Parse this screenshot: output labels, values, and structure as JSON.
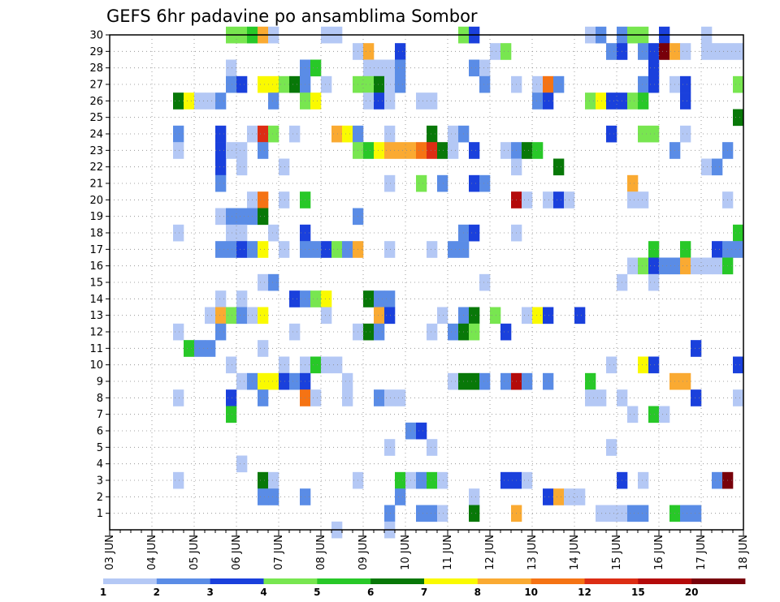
{
  "chart_data": {
    "type": "heatmap",
    "title": "GEFS 6hr padavine po ansamblima Sombor",
    "xlabel": "",
    "ylabel": "",
    "x_tick_labels": [
      "03 JUN",
      "04 JUN",
      "05 JUN",
      "06 JUN",
      "07 JUN",
      "08 JUN",
      "09 JUN",
      "10 JUN",
      "11 JUN",
      "12 JUN",
      "13 JUN",
      "14 JUN",
      "15 JUN",
      "16 JUN",
      "17 JUN",
      "18 JUN"
    ],
    "y_tick_labels": [
      "1",
      "2",
      "3",
      "4",
      "5",
      "6",
      "7",
      "8",
      "9",
      "10",
      "11",
      "12",
      "13",
      "14",
      "15",
      "16",
      "17",
      "18",
      "19",
      "20",
      "21",
      "22",
      "23",
      "24",
      "25",
      "26",
      "27",
      "28",
      "29",
      "30"
    ],
    "y_range": [
      0,
      30
    ],
    "time_steps": 60,
    "steps_per_day": 4,
    "grid": true,
    "legend_position": "bottom",
    "legend": {
      "labels": [
        "1",
        "2",
        "3",
        "4",
        "5",
        "6",
        "7",
        "8",
        "10",
        "12",
        "15",
        "20"
      ],
      "colors": [
        "#b4c8f5",
        "#5a8ce6",
        "#1a40dc",
        "#78e650",
        "#28c828",
        "#087808",
        "#fafa00",
        "#faaa32",
        "#f57314",
        "#dc2d14",
        "#b40a0a",
        "#78000a"
      ]
    },
    "colors": [
      "#b4c8f5",
      "#5a8ce6",
      "#1a40dc",
      "#78e650",
      "#28c828",
      "#087808",
      "#fafa00",
      "#faaa32",
      "#f57314",
      "#dc2d14",
      "#b40a0a",
      "#78000a"
    ],
    "cells": [
      [
        30,
        11,
        3
      ],
      [
        30,
        12,
        3
      ],
      [
        30,
        13,
        4
      ],
      [
        30,
        14,
        7
      ],
      [
        30,
        15,
        0
      ],
      [
        30,
        20,
        0
      ],
      [
        30,
        21,
        0
      ],
      [
        30,
        33,
        3
      ],
      [
        30,
        34,
        2
      ],
      [
        30,
        45,
        0
      ],
      [
        30,
        46,
        1
      ],
      [
        30,
        48,
        1
      ],
      [
        30,
        49,
        3
      ],
      [
        30,
        50,
        3
      ],
      [
        30,
        52,
        2
      ],
      [
        30,
        56,
        0
      ],
      [
        29,
        23,
        0
      ],
      [
        29,
        24,
        7
      ],
      [
        29,
        27,
        2
      ],
      [
        29,
        36,
        0
      ],
      [
        29,
        37,
        3
      ],
      [
        29,
        47,
        1
      ],
      [
        29,
        48,
        2
      ],
      [
        29,
        50,
        1
      ],
      [
        29,
        51,
        2
      ],
      [
        29,
        52,
        11
      ],
      [
        29,
        53,
        7
      ],
      [
        29,
        54,
        0
      ],
      [
        29,
        56,
        0
      ],
      [
        29,
        57,
        0
      ],
      [
        29,
        58,
        0
      ],
      [
        29,
        59,
        0
      ],
      [
        28,
        11,
        0
      ],
      [
        28,
        18,
        1
      ],
      [
        28,
        19,
        4
      ],
      [
        28,
        24,
        0
      ],
      [
        28,
        25,
        0
      ],
      [
        28,
        26,
        0
      ],
      [
        28,
        27,
        1
      ],
      [
        28,
        34,
        1
      ],
      [
        28,
        35,
        0
      ],
      [
        28,
        51,
        2
      ],
      [
        27,
        11,
        1
      ],
      [
        27,
        12,
        2
      ],
      [
        27,
        14,
        6
      ],
      [
        27,
        15,
        6
      ],
      [
        27,
        16,
        3
      ],
      [
        27,
        17,
        5
      ],
      [
        27,
        18,
        1
      ],
      [
        27,
        20,
        0
      ],
      [
        27,
        23,
        3
      ],
      [
        27,
        24,
        3
      ],
      [
        27,
        25,
        5
      ],
      [
        27,
        26,
        0
      ],
      [
        27,
        27,
        1
      ],
      [
        27,
        35,
        1
      ],
      [
        27,
        38,
        0
      ],
      [
        27,
        40,
        0
      ],
      [
        27,
        41,
        8
      ],
      [
        27,
        42,
        1
      ],
      [
        27,
        50,
        1
      ],
      [
        27,
        51,
        2
      ],
      [
        27,
        53,
        0
      ],
      [
        27,
        54,
        2
      ],
      [
        27,
        59,
        3
      ],
      [
        26,
        6,
        5
      ],
      [
        26,
        7,
        6
      ],
      [
        26,
        8,
        0
      ],
      [
        26,
        9,
        0
      ],
      [
        26,
        10,
        1
      ],
      [
        26,
        15,
        1
      ],
      [
        26,
        18,
        3
      ],
      [
        26,
        19,
        6
      ],
      [
        26,
        24,
        0
      ],
      [
        26,
        25,
        2
      ],
      [
        26,
        26,
        0
      ],
      [
        26,
        29,
        0
      ],
      [
        26,
        30,
        0
      ],
      [
        26,
        40,
        1
      ],
      [
        26,
        41,
        2
      ],
      [
        26,
        45,
        3
      ],
      [
        26,
        46,
        6
      ],
      [
        26,
        47,
        2
      ],
      [
        26,
        48,
        2
      ],
      [
        26,
        49,
        3
      ],
      [
        26,
        50,
        4
      ],
      [
        26,
        54,
        2
      ],
      [
        25,
        59,
        5
      ],
      [
        24,
        6,
        1
      ],
      [
        24,
        10,
        2
      ],
      [
        24,
        13,
        0
      ],
      [
        24,
        14,
        9
      ],
      [
        24,
        15,
        3
      ],
      [
        24,
        17,
        0
      ],
      [
        24,
        21,
        7
      ],
      [
        24,
        22,
        6
      ],
      [
        24,
        23,
        1
      ],
      [
        24,
        26,
        0
      ],
      [
        24,
        30,
        5
      ],
      [
        24,
        32,
        0
      ],
      [
        24,
        33,
        1
      ],
      [
        24,
        47,
        2
      ],
      [
        24,
        50,
        3
      ],
      [
        24,
        51,
        3
      ],
      [
        24,
        54,
        0
      ],
      [
        23,
        6,
        0
      ],
      [
        23,
        10,
        2
      ],
      [
        23,
        11,
        0
      ],
      [
        23,
        12,
        0
      ],
      [
        23,
        14,
        1
      ],
      [
        23,
        23,
        3
      ],
      [
        23,
        24,
        4
      ],
      [
        23,
        25,
        6
      ],
      [
        23,
        26,
        7
      ],
      [
        23,
        27,
        7
      ],
      [
        23,
        28,
        7
      ],
      [
        23,
        29,
        8
      ],
      [
        23,
        30,
        9
      ],
      [
        23,
        31,
        5
      ],
      [
        23,
        32,
        0
      ],
      [
        23,
        34,
        2
      ],
      [
        23,
        37,
        0
      ],
      [
        23,
        38,
        1
      ],
      [
        23,
        39,
        5
      ],
      [
        23,
        40,
        4
      ],
      [
        23,
        53,
        1
      ],
      [
        23,
        58,
        1
      ],
      [
        22,
        10,
        2
      ],
      [
        22,
        12,
        0
      ],
      [
        22,
        16,
        0
      ],
      [
        22,
        38,
        0
      ],
      [
        22,
        42,
        5
      ],
      [
        22,
        56,
        0
      ],
      [
        22,
        57,
        1
      ],
      [
        21,
        10,
        1
      ],
      [
        21,
        26,
        0
      ],
      [
        21,
        29,
        3
      ],
      [
        21,
        31,
        1
      ],
      [
        21,
        34,
        2
      ],
      [
        21,
        35,
        1
      ],
      [
        21,
        49,
        7
      ],
      [
        20,
        13,
        0
      ],
      [
        20,
        14,
        8
      ],
      [
        20,
        16,
        0
      ],
      [
        20,
        18,
        4
      ],
      [
        20,
        38,
        10
      ],
      [
        20,
        39,
        0
      ],
      [
        20,
        41,
        0
      ],
      [
        20,
        42,
        2
      ],
      [
        20,
        43,
        0
      ],
      [
        20,
        49,
        0
      ],
      [
        20,
        50,
        0
      ],
      [
        20,
        58,
        0
      ],
      [
        19,
        10,
        0
      ],
      [
        19,
        11,
        1
      ],
      [
        19,
        12,
        1
      ],
      [
        19,
        13,
        1
      ],
      [
        19,
        14,
        5
      ],
      [
        19,
        23,
        1
      ],
      [
        18,
        6,
        0
      ],
      [
        18,
        11,
        0
      ],
      [
        18,
        12,
        0
      ],
      [
        18,
        15,
        0
      ],
      [
        18,
        18,
        2
      ],
      [
        18,
        33,
        1
      ],
      [
        18,
        34,
        2
      ],
      [
        18,
        38,
        0
      ],
      [
        18,
        59,
        4
      ],
      [
        17,
        10,
        1
      ],
      [
        17,
        11,
        1
      ],
      [
        17,
        12,
        2
      ],
      [
        17,
        13,
        1
      ],
      [
        17,
        14,
        6
      ],
      [
        17,
        16,
        0
      ],
      [
        17,
        18,
        1
      ],
      [
        17,
        19,
        1
      ],
      [
        17,
        20,
        2
      ],
      [
        17,
        21,
        3
      ],
      [
        17,
        22,
        1
      ],
      [
        17,
        23,
        7
      ],
      [
        17,
        26,
        0
      ],
      [
        17,
        30,
        0
      ],
      [
        17,
        32,
        1
      ],
      [
        17,
        33,
        1
      ],
      [
        17,
        51,
        4
      ],
      [
        17,
        54,
        4
      ],
      [
        17,
        57,
        2
      ],
      [
        17,
        58,
        1
      ],
      [
        17,
        59,
        1
      ],
      [
        16,
        49,
        0
      ],
      [
        16,
        50,
        3
      ],
      [
        16,
        51,
        2
      ],
      [
        16,
        52,
        1
      ],
      [
        16,
        53,
        1
      ],
      [
        16,
        54,
        7
      ],
      [
        16,
        55,
        0
      ],
      [
        16,
        56,
        0
      ],
      [
        16,
        57,
        0
      ],
      [
        16,
        58,
        4
      ],
      [
        15,
        14,
        0
      ],
      [
        15,
        15,
        1
      ],
      [
        15,
        35,
        0
      ],
      [
        15,
        48,
        0
      ],
      [
        15,
        51,
        0
      ],
      [
        14,
        17,
        2
      ],
      [
        14,
        18,
        1
      ],
      [
        14,
        19,
        3
      ],
      [
        14,
        20,
        6
      ],
      [
        14,
        24,
        5
      ],
      [
        14,
        25,
        1
      ],
      [
        14,
        26,
        1
      ],
      [
        14,
        12,
        0
      ],
      [
        14,
        10,
        0
      ],
      [
        13,
        9,
        0
      ],
      [
        13,
        10,
        7
      ],
      [
        13,
        11,
        3
      ],
      [
        13,
        12,
        1
      ],
      [
        13,
        13,
        0
      ],
      [
        13,
        14,
        6
      ],
      [
        13,
        20,
        0
      ],
      [
        13,
        25,
        7
      ],
      [
        13,
        26,
        2
      ],
      [
        13,
        31,
        0
      ],
      [
        13,
        33,
        1
      ],
      [
        13,
        34,
        5
      ],
      [
        13,
        36,
        3
      ],
      [
        13,
        39,
        0
      ],
      [
        13,
        40,
        6
      ],
      [
        13,
        41,
        2
      ],
      [
        13,
        44,
        2
      ],
      [
        12,
        6,
        0
      ],
      [
        12,
        10,
        1
      ],
      [
        12,
        17,
        0
      ],
      [
        12,
        23,
        0
      ],
      [
        12,
        24,
        5
      ],
      [
        12,
        25,
        1
      ],
      [
        12,
        30,
        0
      ],
      [
        12,
        32,
        1
      ],
      [
        12,
        33,
        5
      ],
      [
        12,
        34,
        3
      ],
      [
        12,
        37,
        2
      ],
      [
        11,
        7,
        4
      ],
      [
        11,
        8,
        1
      ],
      [
        11,
        9,
        1
      ],
      [
        11,
        14,
        0
      ],
      [
        11,
        55,
        2
      ],
      [
        10,
        11,
        0
      ],
      [
        10,
        16,
        0
      ],
      [
        10,
        18,
        0
      ],
      [
        10,
        19,
        4
      ],
      [
        10,
        20,
        0
      ],
      [
        10,
        21,
        0
      ],
      [
        10,
        47,
        0
      ],
      [
        10,
        50,
        6
      ],
      [
        10,
        51,
        2
      ],
      [
        10,
        59,
        2
      ],
      [
        9,
        12,
        0
      ],
      [
        9,
        13,
        1
      ],
      [
        9,
        14,
        6
      ],
      [
        9,
        15,
        6
      ],
      [
        9,
        16,
        2
      ],
      [
        9,
        17,
        1
      ],
      [
        9,
        18,
        2
      ],
      [
        9,
        22,
        0
      ],
      [
        9,
        32,
        0
      ],
      [
        9,
        33,
        5
      ],
      [
        9,
        34,
        5
      ],
      [
        9,
        35,
        1
      ],
      [
        9,
        37,
        1
      ],
      [
        9,
        38,
        10
      ],
      [
        9,
        39,
        1
      ],
      [
        9,
        41,
        1
      ],
      [
        9,
        45,
        4
      ],
      [
        9,
        53,
        7
      ],
      [
        9,
        54,
        7
      ],
      [
        8,
        6,
        0
      ],
      [
        8,
        11,
        2
      ],
      [
        8,
        14,
        1
      ],
      [
        8,
        18,
        8
      ],
      [
        8,
        19,
        0
      ],
      [
        8,
        22,
        0
      ],
      [
        8,
        25,
        1
      ],
      [
        8,
        26,
        0
      ],
      [
        8,
        27,
        0
      ],
      [
        8,
        45,
        0
      ],
      [
        8,
        46,
        0
      ],
      [
        8,
        48,
        0
      ],
      [
        8,
        55,
        2
      ],
      [
        8,
        59,
        0
      ],
      [
        7,
        11,
        4
      ],
      [
        7,
        49,
        0
      ],
      [
        7,
        51,
        4
      ],
      [
        7,
        52,
        0
      ],
      [
        6,
        28,
        1
      ],
      [
        6,
        29,
        2
      ],
      [
        5,
        26,
        0
      ],
      [
        5,
        30,
        0
      ],
      [
        5,
        47,
        0
      ],
      [
        4,
        12,
        0
      ],
      [
        3,
        6,
        0
      ],
      [
        3,
        14,
        5
      ],
      [
        3,
        15,
        0
      ],
      [
        3,
        23,
        0
      ],
      [
        3,
        27,
        4
      ],
      [
        3,
        28,
        0
      ],
      [
        3,
        29,
        1
      ],
      [
        3,
        30,
        4
      ],
      [
        3,
        31,
        0
      ],
      [
        3,
        37,
        2
      ],
      [
        3,
        38,
        2
      ],
      [
        3,
        39,
        0
      ],
      [
        3,
        48,
        2
      ],
      [
        3,
        50,
        0
      ],
      [
        3,
        57,
        1
      ],
      [
        3,
        58,
        11
      ],
      [
        2,
        14,
        1
      ],
      [
        2,
        15,
        1
      ],
      [
        2,
        18,
        1
      ],
      [
        2,
        27,
        1
      ],
      [
        2,
        34,
        0
      ],
      [
        2,
        41,
        2
      ],
      [
        2,
        42,
        7
      ],
      [
        2,
        43,
        0
      ],
      [
        2,
        44,
        0
      ],
      [
        1,
        26,
        1
      ],
      [
        1,
        29,
        1
      ],
      [
        1,
        30,
        1
      ],
      [
        1,
        31,
        0
      ],
      [
        1,
        34,
        5
      ],
      [
        1,
        38,
        7
      ],
      [
        1,
        46,
        0
      ],
      [
        1,
        47,
        0
      ],
      [
        1,
        48,
        0
      ],
      [
        1,
        49,
        1
      ],
      [
        1,
        50,
        1
      ],
      [
        1,
        53,
        4
      ],
      [
        1,
        54,
        1
      ],
      [
        1,
        55,
        1
      ],
      [
        0,
        21,
        0
      ],
      [
        0,
        26,
        0
      ]
    ]
  }
}
